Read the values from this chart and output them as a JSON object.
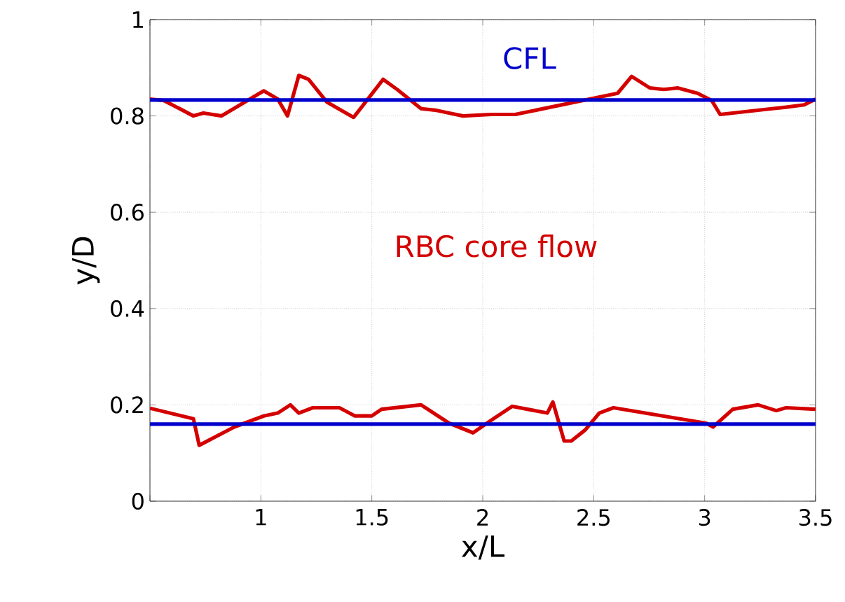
{
  "chart_data": {
    "type": "line",
    "xlabel": "x/L",
    "ylabel": "y/D",
    "series": [
      {
        "color": "#d40000",
        "x": [
          0.5,
          0.563,
          0.696,
          0.741,
          0.823,
          1.013,
          1.076,
          1.12,
          1.171,
          1.215,
          1.297,
          1.418,
          1.551,
          1.614,
          1.722,
          1.785,
          1.848,
          1.911,
          2.038,
          2.146,
          2.608,
          2.671,
          2.753,
          2.816,
          2.88,
          2.968,
          3.032,
          3.07,
          3.304,
          3.367,
          3.449,
          3.5
        ],
        "values": [
          0.835,
          0.832,
          0.8,
          0.806,
          0.8,
          0.852,
          0.835,
          0.8,
          0.884,
          0.876,
          0.829,
          0.797,
          0.876,
          0.855,
          0.815,
          0.812,
          0.806,
          0.8,
          0.803,
          0.803,
          0.847,
          0.882,
          0.858,
          0.855,
          0.858,
          0.847,
          0.832,
          0.803,
          0.815,
          0.818,
          0.823,
          0.835
        ]
      },
      {
        "color": "#d40000",
        "x": [
          0.5,
          0.696,
          0.722,
          0.88,
          1.013,
          1.076,
          1.133,
          1.171,
          1.234,
          1.354,
          1.424,
          1.5,
          1.544,
          1.722,
          1.848,
          1.956,
          2.038,
          2.133,
          2.291,
          2.316,
          2.367,
          2.399,
          2.462,
          2.525,
          2.589,
          3.006,
          3.038,
          3.127,
          3.241,
          3.323,
          3.367,
          3.5
        ],
        "values": [
          0.193,
          0.171,
          0.116,
          0.154,
          0.177,
          0.183,
          0.2,
          0.183,
          0.194,
          0.194,
          0.177,
          0.177,
          0.191,
          0.2,
          0.162,
          0.142,
          0.168,
          0.197,
          0.183,
          0.206,
          0.125,
          0.125,
          0.148,
          0.183,
          0.194,
          0.162,
          0.154,
          0.191,
          0.2,
          0.188,
          0.194,
          0.191
        ]
      }
    ],
    "ref_lines": [
      {
        "axis": "y",
        "value": 0.833,
        "color": "#0000cc"
      },
      {
        "axis": "y",
        "value": 0.16,
        "color": "#0000cc"
      }
    ],
    "annotations": [
      "CFL",
      "RBC core flow"
    ],
    "xlim": [
      0.5,
      3.5
    ],
    "ylim": [
      0,
      1
    ],
    "xticks": [
      {
        "value": 0.5,
        "label": null
      },
      1,
      1.5,
      2,
      2.5,
      3,
      3.5
    ],
    "yticks": [
      0,
      0.2,
      0.4,
      0.6,
      0.8,
      1
    ],
    "grid": true,
    "line_style": "solid",
    "marker": "none"
  }
}
